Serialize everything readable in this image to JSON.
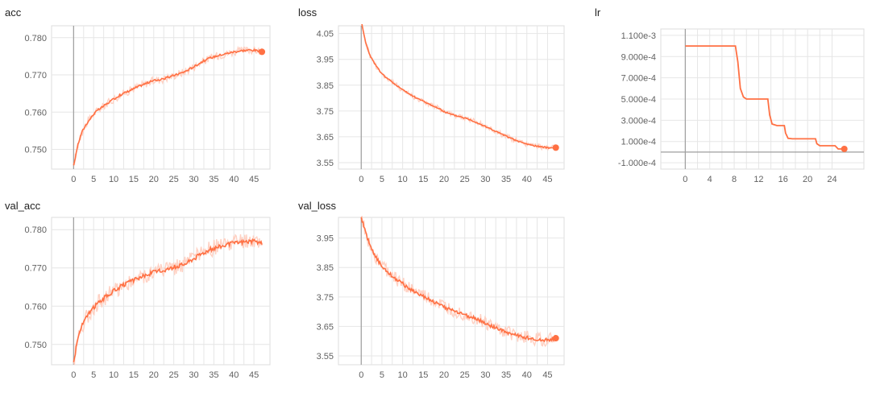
{
  "colors": {
    "series": "#ff7043",
    "series_raw": "#ffccbc",
    "grid": "#e6e6e6",
    "axis_zero": "#9e9e9e"
  },
  "chart_data": [
    {
      "id": "acc",
      "type": "line",
      "title": "acc",
      "xlim": [
        -5.5,
        49
      ],
      "ylim": [
        0.7447,
        0.7832
      ],
      "xticks": [
        "0",
        "5",
        "10",
        "15",
        "20",
        "25",
        "30",
        "35",
        "40",
        "45"
      ],
      "yticks": [
        "0.750",
        "0.760",
        "0.770",
        "0.780"
      ],
      "grid": true,
      "smoothed": true,
      "series": [
        {
          "x": [
            0,
            1,
            2,
            3,
            4,
            5,
            6,
            8,
            10,
            12,
            14,
            16,
            18,
            20,
            22,
            24,
            26,
            28,
            30,
            32,
            34,
            36,
            38,
            40,
            42,
            44,
            46,
            47
          ],
          "y": [
            0.7455,
            0.751,
            0.7545,
            0.7565,
            0.758,
            0.7595,
            0.7605,
            0.762,
            0.7635,
            0.7648,
            0.7658,
            0.7668,
            0.7677,
            0.7685,
            0.7688,
            0.7695,
            0.7702,
            0.771,
            0.7722,
            0.7735,
            0.7745,
            0.7752,
            0.7757,
            0.7762,
            0.7765,
            0.7767,
            0.7765,
            0.7762
          ],
          "noise": 0.0006,
          "end_marker": true
        }
      ]
    },
    {
      "id": "loss",
      "type": "line",
      "title": "loss",
      "xlim": [
        -5.5,
        49
      ],
      "ylim": [
        3.525,
        4.08
      ],
      "xticks": [
        "0",
        "5",
        "10",
        "15",
        "20",
        "25",
        "30",
        "35",
        "40",
        "45"
      ],
      "yticks": [
        "3.55",
        "3.65",
        "3.75",
        "3.85",
        "3.95",
        "4.05"
      ],
      "grid": true,
      "smoothed": true,
      "series": [
        {
          "x": [
            0,
            1,
            2,
            3,
            4,
            5,
            6,
            8,
            10,
            12,
            14,
            16,
            18,
            20,
            22,
            24,
            26,
            28,
            30,
            32,
            34,
            36,
            38,
            40,
            42,
            44,
            46,
            47
          ],
          "y": [
            4.1,
            4.02,
            3.97,
            3.94,
            3.915,
            3.895,
            3.88,
            3.855,
            3.832,
            3.812,
            3.795,
            3.78,
            3.765,
            3.748,
            3.735,
            3.728,
            3.718,
            3.705,
            3.69,
            3.675,
            3.66,
            3.645,
            3.632,
            3.622,
            3.615,
            3.61,
            3.607,
            3.608
          ],
          "noise": 0.006,
          "end_marker": true
        }
      ]
    },
    {
      "id": "lr",
      "type": "line",
      "title": "lr",
      "xlim": [
        -4,
        29.2
      ],
      "ylim": [
        -0.00016,
        0.00116
      ],
      "xticks": [
        "0",
        "4",
        "8",
        "12",
        "16",
        "20",
        "24"
      ],
      "yticks": [
        "-1.000e-4",
        "1.000e-4",
        "3.000e-4",
        "5.000e-4",
        "7.000e-4",
        "9.000e-4",
        "1.100e-3"
      ],
      "grid": true,
      "smoothed": false,
      "series": [
        {
          "x": [
            0,
            8.2,
            8.6,
            9,
            9.5,
            10,
            11,
            13.5,
            13.8,
            14.2,
            15,
            16.2,
            16.4,
            16.8,
            17.5,
            21.3,
            21.5,
            22,
            24.5,
            25,
            26
          ],
          "y": [
            0.001,
            0.001,
            0.00085,
            0.0006,
            0.00052,
            0.0005,
            0.0005,
            0.0005,
            0.00035,
            0.000265,
            0.00025,
            0.00025,
            0.00018,
            0.00013,
            0.000125,
            0.000125,
            8e-05,
            6e-05,
            6e-05,
            3e-05,
            3e-05
          ],
          "noise": 0,
          "end_marker": true
        }
      ]
    },
    {
      "id": "val_acc",
      "type": "line",
      "title": "val_acc",
      "xlim": [
        -5.5,
        49
      ],
      "ylim": [
        0.7447,
        0.7832
      ],
      "xticks": [
        "0",
        "5",
        "10",
        "15",
        "20",
        "25",
        "30",
        "35",
        "40",
        "45"
      ],
      "yticks": [
        "0.750",
        "0.760",
        "0.770",
        "0.780"
      ],
      "grid": true,
      "smoothed": true,
      "series": [
        {
          "x": [
            0,
            1,
            2,
            3,
            4,
            5,
            6,
            8,
            10,
            12,
            14,
            16,
            18,
            20,
            22,
            24,
            26,
            28,
            30,
            32,
            34,
            36,
            38,
            40,
            42,
            44,
            46,
            47
          ],
          "y": [
            0.7452,
            0.7515,
            0.7548,
            0.7568,
            0.7583,
            0.7597,
            0.7608,
            0.7625,
            0.764,
            0.7653,
            0.7663,
            0.7673,
            0.7681,
            0.7689,
            0.7693,
            0.7699,
            0.7705,
            0.7712,
            0.7725,
            0.7738,
            0.7748,
            0.7755,
            0.776,
            0.7765,
            0.7768,
            0.777,
            0.7768,
            0.7765
          ],
          "noise": 0.0012,
          "end_marker": false
        }
      ]
    },
    {
      "id": "val_loss",
      "type": "line",
      "title": "val_loss",
      "xlim": [
        -5.5,
        49
      ],
      "ylim": [
        3.52,
        4.02
      ],
      "xticks": [
        "0",
        "5",
        "10",
        "15",
        "20",
        "25",
        "30",
        "35",
        "40",
        "45"
      ],
      "yticks": [
        "3.55",
        "3.65",
        "3.75",
        "3.85",
        "3.95"
      ],
      "grid": true,
      "smoothed": true,
      "series": [
        {
          "x": [
            0,
            1,
            2,
            3,
            4,
            5,
            6,
            8,
            10,
            12,
            14,
            16,
            18,
            20,
            22,
            24,
            26,
            28,
            30,
            32,
            34,
            36,
            38,
            40,
            42,
            44,
            46,
            47
          ],
          "y": [
            4.02,
            3.97,
            3.93,
            3.9,
            3.875,
            3.855,
            3.84,
            3.815,
            3.795,
            3.775,
            3.76,
            3.745,
            3.73,
            3.715,
            3.705,
            3.695,
            3.685,
            3.675,
            3.66,
            3.648,
            3.635,
            3.625,
            3.618,
            3.612,
            3.608,
            3.605,
            3.605,
            3.61
          ],
          "noise": 0.013,
          "end_marker": true
        }
      ]
    }
  ]
}
